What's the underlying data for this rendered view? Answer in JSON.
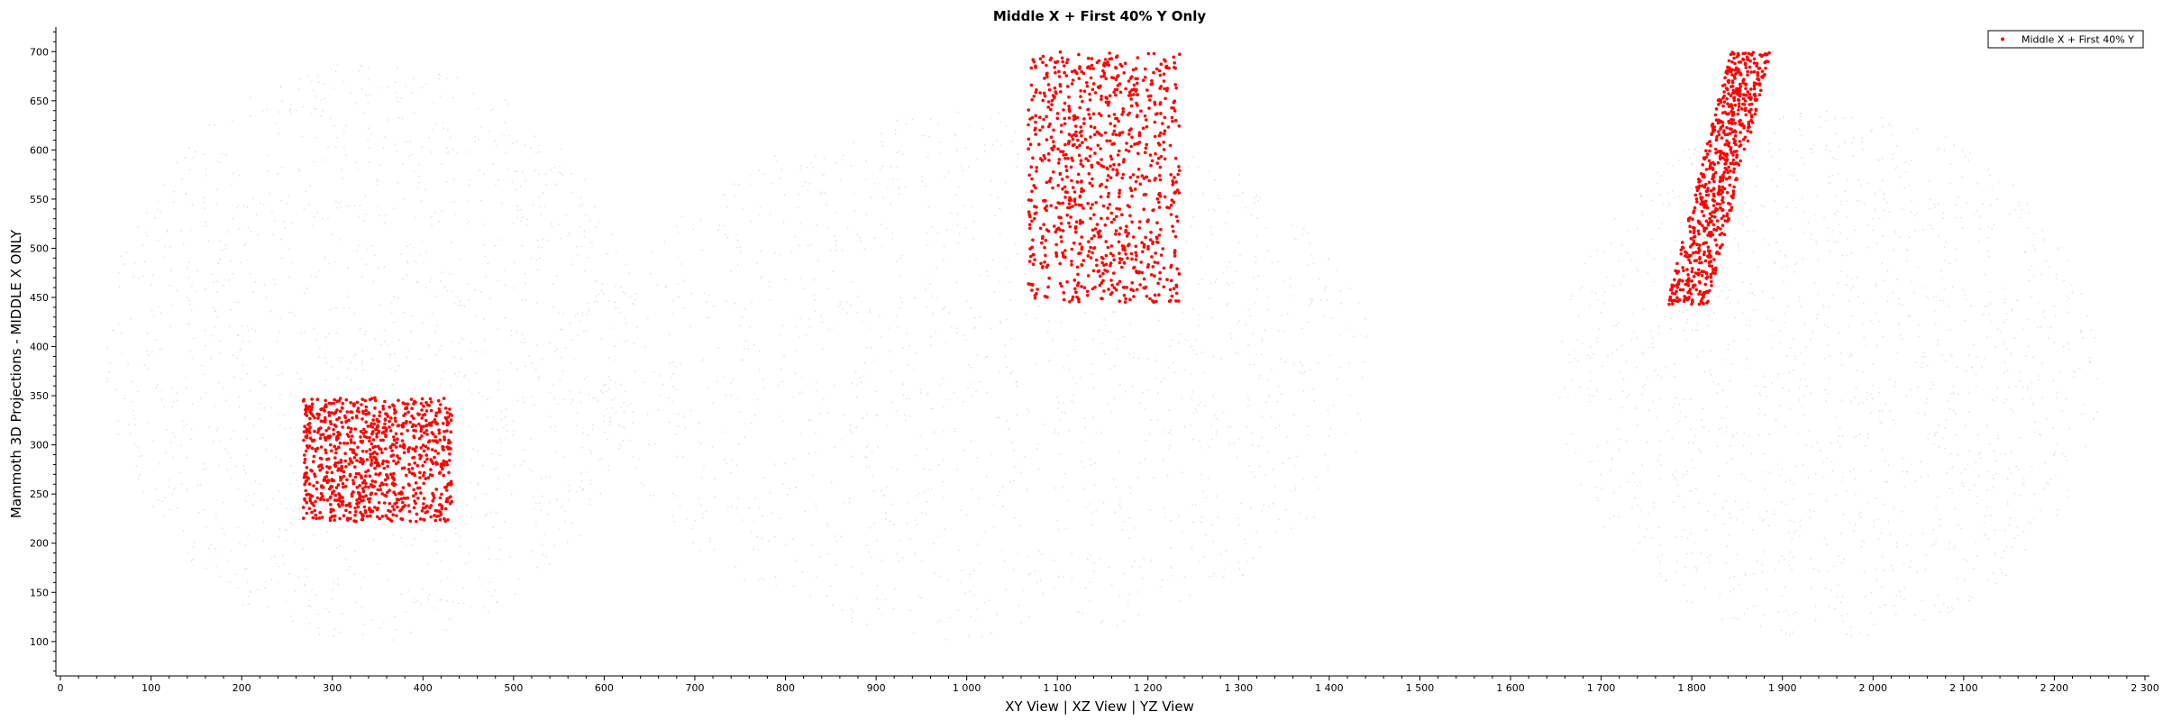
{
  "chart_data": {
    "type": "scatter",
    "title": "Middle X + First 40% Y Only",
    "xlabel": "XY View | XZ View | YZ View",
    "ylabel": "Mammoth 3D Projections - MIDDLE X ONLY",
    "xlim": [
      -5,
      2305
    ],
    "ylim": [
      65,
      725
    ],
    "x_ticks": [
      0,
      100,
      200,
      300,
      400,
      500,
      600,
      700,
      800,
      900,
      1000,
      1100,
      1200,
      1300,
      1400,
      1500,
      1600,
      1700,
      1800,
      1900,
      2000,
      2100,
      2200,
      2300
    ],
    "x_tick_labels": [
      "0",
      "100",
      "200",
      "300",
      "400",
      "500",
      "600",
      "700",
      "800",
      "900",
      "1 000",
      "1 100",
      "1 200",
      "1 300",
      "1 400",
      "1 500",
      "1 600",
      "1 700",
      "1 800",
      "1 900",
      "2 000",
      "2 100",
      "2 200",
      "2 300"
    ],
    "y_ticks": [
      100,
      150,
      200,
      250,
      300,
      350,
      400,
      450,
      500,
      550,
      600,
      650,
      700
    ],
    "y_tick_labels": [
      "100",
      "150",
      "200",
      "250",
      "300",
      "350",
      "400",
      "450",
      "500",
      "550",
      "600",
      "650",
      "700"
    ],
    "grid": false,
    "legend": {
      "position": "top-right",
      "entries": [
        "Middle X + First 40% Y"
      ]
    },
    "series": [
      {
        "name": "Middle X + First 40% Y",
        "color": "#ff0000",
        "clusters": [
          {
            "view": "XY",
            "x_range": [
              268,
              432
            ],
            "y_range": [
              222,
              348
            ],
            "approx_points": 900
          },
          {
            "view": "XZ",
            "x_range": [
              1068,
              1235
            ],
            "y_range": [
              445,
              700
            ],
            "approx_points": 900
          },
          {
            "view": "YZ",
            "x_range": [
              1775,
              1900
            ],
            "y_range": [
              443,
              700
            ],
            "approx_points": 700
          }
        ]
      },
      {
        "name": "",
        "color": "#dddddd",
        "role": "background",
        "clusters": [
          {
            "view": "XY",
            "x_range": [
              50,
              640
            ],
            "y_range": [
              100,
              690
            ]
          },
          {
            "view": "XZ",
            "x_range": [
              600,
              1450
            ],
            "y_range": [
              100,
              640
            ]
          },
          {
            "view": "YZ",
            "x_range": [
              1650,
              2250
            ],
            "y_range": [
              100,
              640
            ]
          }
        ]
      }
    ]
  }
}
